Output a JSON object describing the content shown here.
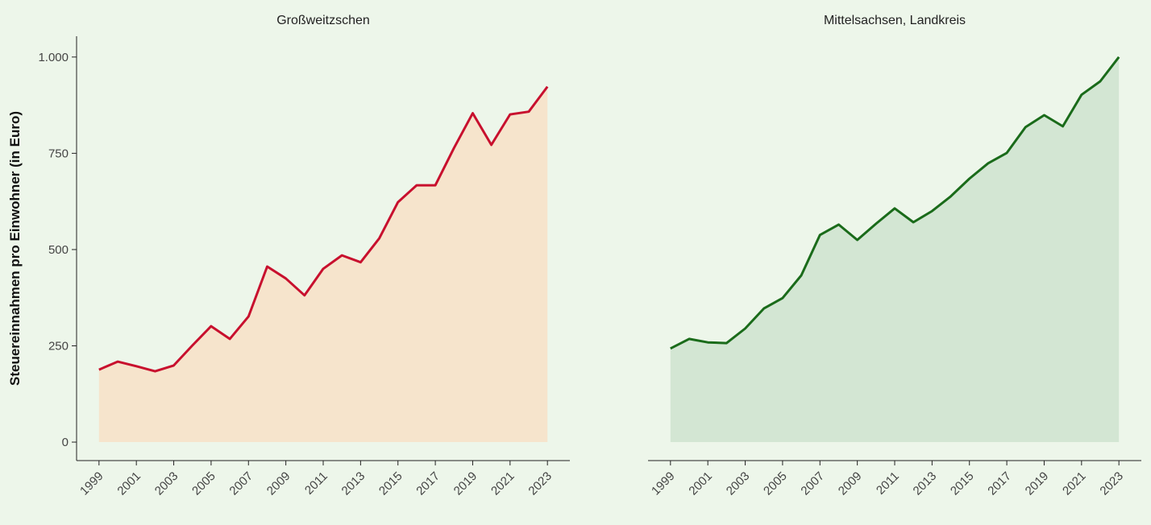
{
  "chart_data": [
    {
      "type": "area",
      "title": "Großweitzschen",
      "ylabel": "Steuereinnahmen pro Einwohner (in Euro)",
      "x": [
        1999,
        2000,
        2001,
        2002,
        2003,
        2004,
        2005,
        2006,
        2007,
        2008,
        2009,
        2010,
        2011,
        2012,
        2013,
        2014,
        2015,
        2016,
        2017,
        2018,
        2019,
        2020,
        2021,
        2022,
        2023
      ],
      "values": [
        188,
        209,
        197,
        184,
        199,
        251,
        301,
        268,
        326,
        456,
        425,
        381,
        450,
        485,
        467,
        529,
        623,
        667,
        667,
        764,
        854,
        772,
        851,
        858,
        923
      ],
      "color": "#c8102e",
      "fill": "#f6e4cc",
      "xlim": [
        1997.8,
        2024.2
      ],
      "xticks": [
        1999,
        2001,
        2003,
        2005,
        2007,
        2009,
        2011,
        2013,
        2015,
        2017,
        2019,
        2021,
        2023
      ],
      "ylim": [
        -48,
        1054
      ],
      "yticks": [
        0,
        250,
        500,
        750,
        {
          "value": 1000,
          "label": "1.000"
        }
      ]
    },
    {
      "type": "area",
      "title": "Mittelsachsen, Landkreis",
      "x": [
        1999,
        2000,
        2001,
        2002,
        2003,
        2004,
        2005,
        2006,
        2007,
        2008,
        2009,
        2010,
        2011,
        2012,
        2013,
        2014,
        2015,
        2016,
        2017,
        2018,
        2019,
        2020,
        2021,
        2022,
        2023
      ],
      "values": [
        243,
        268,
        259,
        257,
        295,
        347,
        374,
        433,
        538,
        565,
        525,
        567,
        607,
        571,
        600,
        638,
        684,
        724,
        751,
        818,
        849,
        820,
        902,
        937,
        1000
      ],
      "color": "#1a6b1a",
      "fill": "#d3e6d3",
      "xlim": [
        1997.8,
        2024.2
      ],
      "xticks": [
        1999,
        2001,
        2003,
        2005,
        2007,
        2009,
        2011,
        2013,
        2015,
        2017,
        2019,
        2021,
        2023
      ],
      "ylim": [
        -48,
        1054
      ]
    }
  ]
}
